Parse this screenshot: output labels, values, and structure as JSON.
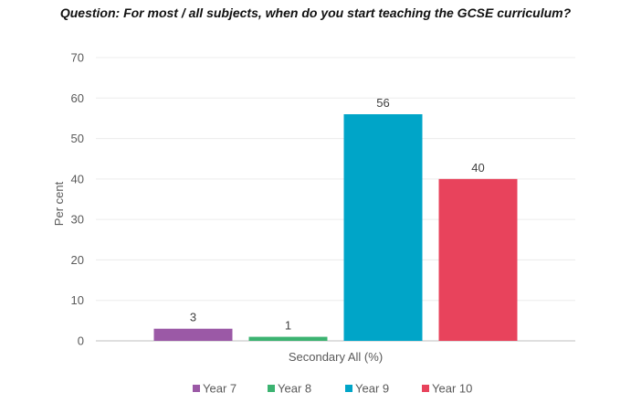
{
  "chart_data": {
    "type": "bar",
    "title": "Question: For most / all subjects, when do you start teaching the GCSE curriculum?",
    "xlabel": "Secondary All (%)",
    "ylabel": "Per cent",
    "ylim": [
      0,
      70
    ],
    "yticks": [
      0,
      10,
      20,
      30,
      40,
      50,
      60,
      70
    ],
    "grid": true,
    "legend_position": "bottom",
    "categories": [
      "Secondary All (%)"
    ],
    "series": [
      {
        "name": "Year 7",
        "values": [
          3
        ],
        "color": "#9b59a6"
      },
      {
        "name": "Year 8",
        "values": [
          1
        ],
        "color": "#3cb371"
      },
      {
        "name": "Year 9",
        "values": [
          56
        ],
        "color": "#00a5c8"
      },
      {
        "name": "Year 10",
        "values": [
          40
        ],
        "color": "#e8435c"
      }
    ]
  }
}
